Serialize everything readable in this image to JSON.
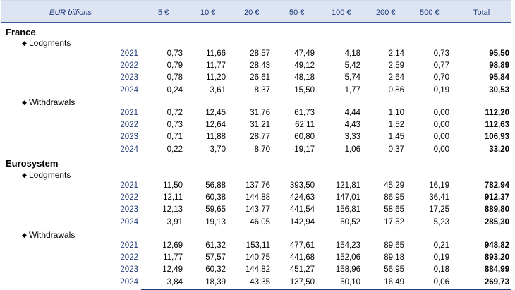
{
  "header": {
    "unit": "EUR billions",
    "columns": [
      "5 €",
      "10 €",
      "20 €",
      "50 €",
      "100 €",
      "200 €",
      "500 €",
      "Total"
    ]
  },
  "groups": [
    {
      "country": "France",
      "sections": [
        {
          "label": "Lodgments",
          "rows": [
            {
              "year": "2021",
              "values": [
                "0,73",
                "11,66",
                "28,57",
                "47,49",
                "4,18",
                "2,14",
                "0,73",
                "95,50"
              ]
            },
            {
              "year": "2022",
              "values": [
                "0,79",
                "11,77",
                "28,43",
                "49,12",
                "5,42",
                "2,59",
                "0,77",
                "98,89"
              ]
            },
            {
              "year": "2023",
              "values": [
                "0,78",
                "11,20",
                "26,61",
                "48,18",
                "5,74",
                "2,64",
                "0,70",
                "95,84"
              ]
            },
            {
              "year": "2024",
              "values": [
                "0,24",
                "3,61",
                "8,37",
                "15,50",
                "1,77",
                "0,86",
                "0,19",
                "30,53"
              ]
            }
          ]
        },
        {
          "label": "Withdrawals",
          "rows": [
            {
              "year": "2021",
              "values": [
                "0,72",
                "12,45",
                "31,76",
                "61,73",
                "4,44",
                "1,10",
                "0,00",
                "112,20"
              ]
            },
            {
              "year": "2022",
              "values": [
                "0,73",
                "12,64",
                "31,21",
                "62,11",
                "4,43",
                "1,52",
                "0,00",
                "112,63"
              ]
            },
            {
              "year": "2023",
              "values": [
                "0,71",
                "11,88",
                "28,77",
                "60,80",
                "3,33",
                "1,45",
                "0,00",
                "106,93"
              ]
            },
            {
              "year": "2024",
              "values": [
                "0,22",
                "3,70",
                "8,70",
                "19,17",
                "1,06",
                "0,37",
                "0,00",
                "33,20"
              ]
            }
          ]
        }
      ]
    },
    {
      "country": "Eurosystem",
      "sections": [
        {
          "label": "Lodgments",
          "rows": [
            {
              "year": "2021",
              "values": [
                "11,50",
                "56,88",
                "137,76",
                "393,50",
                "121,81",
                "45,29",
                "16,19",
                "782,94"
              ]
            },
            {
              "year": "2022",
              "values": [
                "12,11",
                "60,38",
                "144,88",
                "424,63",
                "147,01",
                "86,95",
                "36,41",
                "912,37"
              ]
            },
            {
              "year": "2023",
              "values": [
                "12,13",
                "59,65",
                "143,77",
                "441,54",
                "156,81",
                "58,65",
                "17,25",
                "889,80"
              ]
            },
            {
              "year": "2024",
              "values": [
                "3,91",
                "19,13",
                "46,05",
                "142,94",
                "50,52",
                "17,52",
                "5,23",
                "285,30"
              ]
            }
          ]
        },
        {
          "label": "Withdrawals",
          "rows": [
            {
              "year": "2021",
              "values": [
                "12,69",
                "61,32",
                "153,11",
                "477,61",
                "154,23",
                "89,65",
                "0,21",
                "948,82"
              ]
            },
            {
              "year": "2022",
              "values": [
                "11,77",
                "57,57",
                "140,75",
                "441,68",
                "152,06",
                "89,18",
                "0,19",
                "893,20"
              ]
            },
            {
              "year": "2023",
              "values": [
                "12,49",
                "60,32",
                "144,82",
                "451,27",
                "158,96",
                "56,95",
                "0,18",
                "884,99"
              ]
            },
            {
              "year": "2024",
              "values": [
                "3,84",
                "18,39",
                "43,35",
                "137,50",
                "50,10",
                "16,49",
                "0,06",
                "269,73"
              ]
            }
          ]
        }
      ]
    }
  ]
}
